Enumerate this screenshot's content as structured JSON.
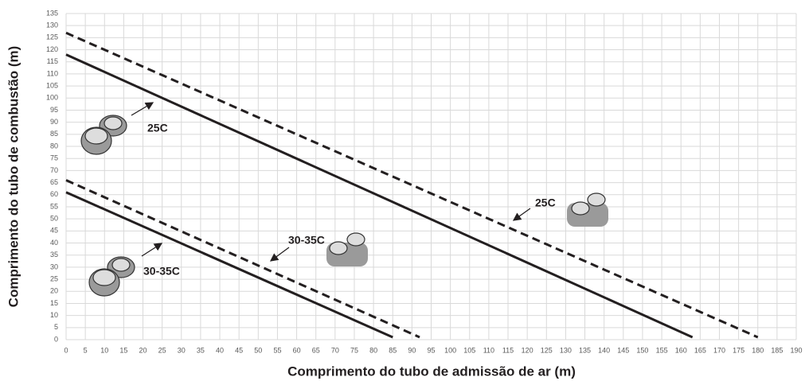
{
  "chart_data": {
    "type": "line",
    "xlabel": "Comprimento do tubo de admissão de ar (m)",
    "ylabel": "Comprimento do tubo de combustão (m)",
    "xlim": [
      0,
      190
    ],
    "ylim": [
      0,
      135
    ],
    "xticks": [
      0,
      5,
      10,
      15,
      20,
      25,
      30,
      35,
      40,
      45,
      50,
      55,
      60,
      65,
      70,
      75,
      80,
      85,
      90,
      95,
      100,
      105,
      110,
      115,
      120,
      125,
      130,
      135,
      140,
      145,
      150,
      155,
      160,
      165,
      170,
      175,
      180,
      185,
      190
    ],
    "yticks": [
      0,
      5,
      10,
      15,
      20,
      25,
      30,
      35,
      40,
      45,
      50,
      55,
      60,
      65,
      70,
      75,
      80,
      85,
      90,
      95,
      100,
      105,
      110,
      115,
      120,
      125,
      130,
      135
    ],
    "grid": true,
    "series": [
      {
        "color": "#231f20",
        "dashed": false,
        "x": [
          0,
          163
        ],
        "values": [
          118,
          1
        ]
      },
      {
        "color": "#231f20",
        "dashed": true,
        "x": [
          0,
          180
        ],
        "values": [
          127,
          1
        ]
      },
      {
        "color": "#231f20",
        "dashed": false,
        "x": [
          0,
          85
        ],
        "values": [
          61,
          1
        ]
      },
      {
        "color": "#231f20",
        "dashed": true,
        "x": [
          0,
          92
        ],
        "values": [
          66,
          1
        ]
      }
    ],
    "annotations": [
      "25C",
      "25C",
      "30-35C",
      "30-35C"
    ]
  }
}
